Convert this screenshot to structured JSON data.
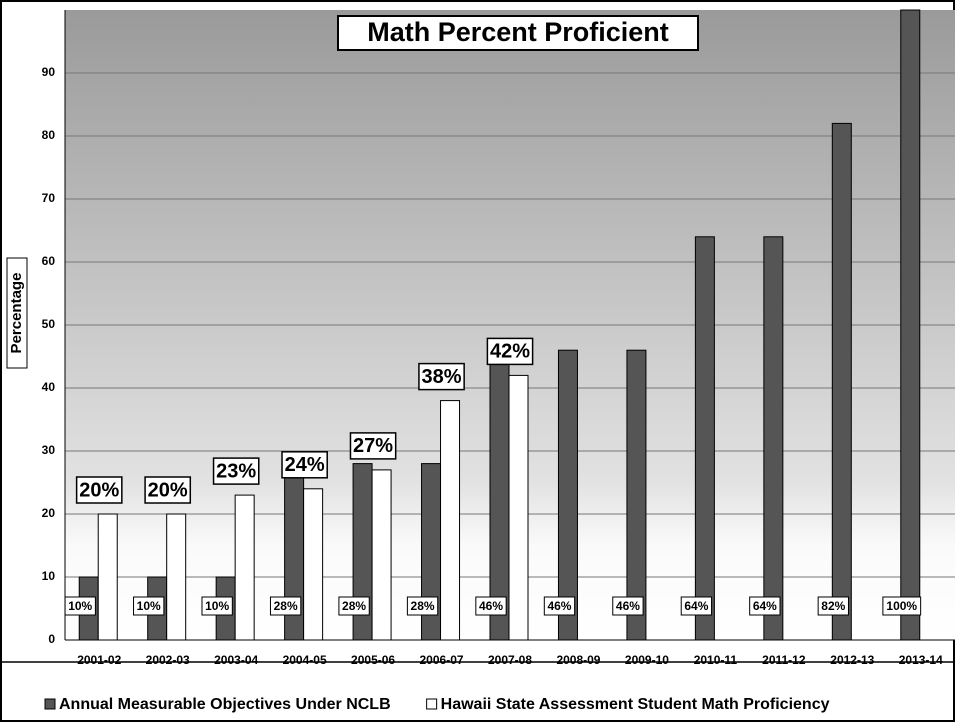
{
  "chart_data": {
    "type": "bar",
    "title": "Math Percent Proficient",
    "y_label": "Percentage",
    "categories": [
      "2001-02",
      "2002-03",
      "2003-04",
      "2004-05",
      "2005-06",
      "2006-07",
      "2007-08",
      "2008-09",
      "2009-10",
      "2010-11",
      "2011-12",
      "2012-13",
      "2013-14"
    ],
    "series": [
      {
        "name": "Annual Measurable Objectives Under NCLB",
        "color": "#555555",
        "values": [
          10,
          10,
          10,
          28,
          28,
          28,
          46,
          46,
          46,
          64,
          64,
          82,
          100
        ],
        "value_labels": [
          "10%",
          "10%",
          "10%",
          "28%",
          "28%",
          "28%",
          "46%",
          "46%",
          "46%",
          "64%",
          "64%",
          "82%",
          "100%"
        ]
      },
      {
        "name": "Hawaii State Assessment Student Math Proficiency",
        "color": "#ffffff",
        "values": [
          20,
          20,
          23,
          24,
          27,
          38,
          42,
          null,
          null,
          null,
          null,
          null,
          null
        ],
        "value_labels": [
          "20%",
          "20%",
          "23%",
          "24%",
          "27%",
          "38%",
          "42%",
          null,
          null,
          null,
          null,
          null,
          null
        ]
      }
    ],
    "ylim": [
      0,
      100
    ],
    "yticks": [
      0,
      10,
      20,
      30,
      40,
      50,
      60,
      70,
      80,
      90
    ],
    "grid": true
  }
}
